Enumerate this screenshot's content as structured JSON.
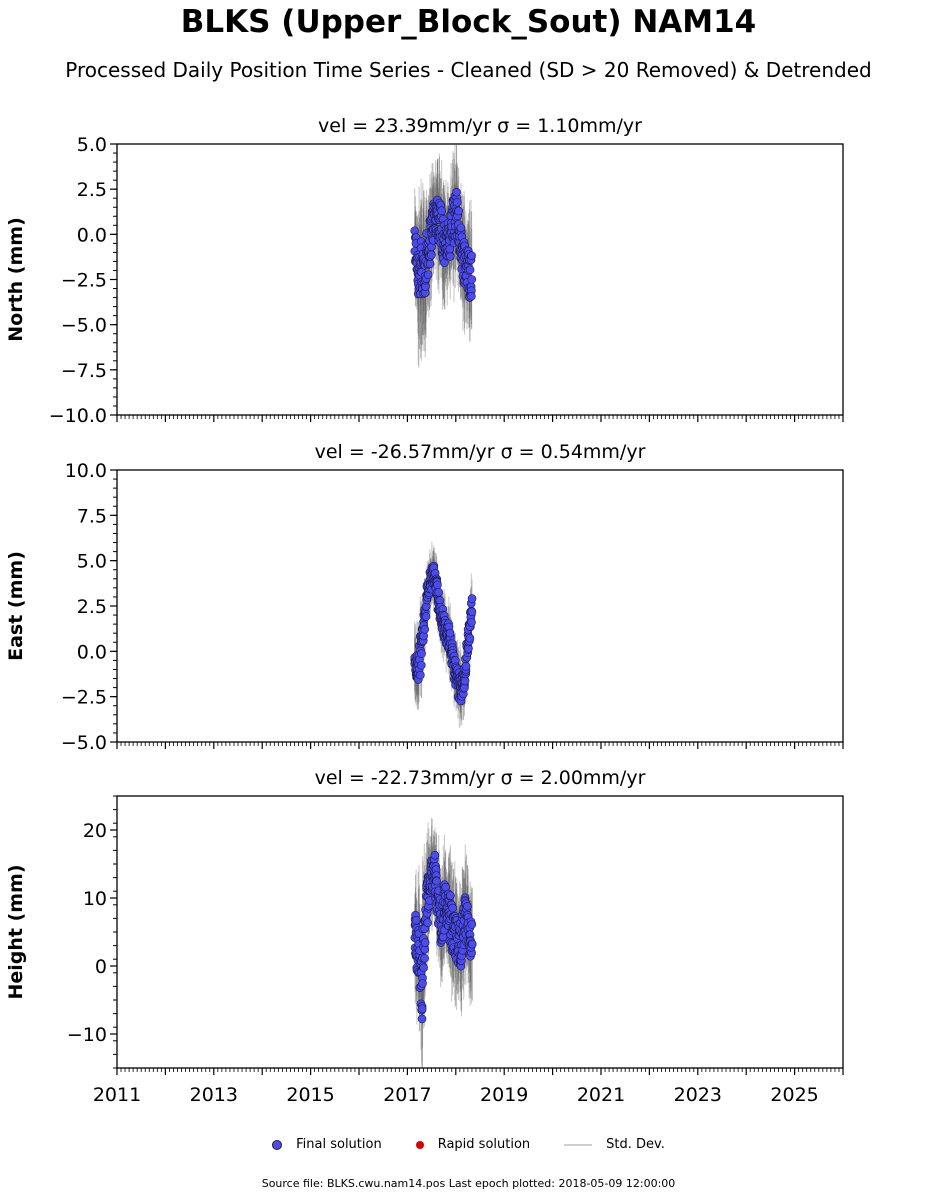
{
  "title": "BLKS (Upper_Block_Sout) NAM14",
  "subtitle": "Processed Daily Position Time Series - Cleaned (SD > 20 Removed) & Detrended",
  "chart_data": [
    {
      "type": "scatter",
      "title": "vel = 23.39mm/yr   σ = 1.10mm/yr",
      "ylabel": "North (mm)",
      "ylim": [
        -10,
        5
      ],
      "yticks": [
        5.0,
        2.5,
        0.0,
        -2.5,
        -5.0,
        -7.5,
        -10.0
      ],
      "ytick_labels": [
        "5.0",
        "2.5",
        "0.0",
        "−2.5",
        "−5.0",
        "−7.5",
        "−10.0"
      ],
      "xlim": [
        2011,
        2026
      ],
      "series": [
        {
          "name": "Final solution",
          "x": [
            2017.15,
            2017.22,
            2017.3,
            2017.38,
            2017.46,
            2017.54,
            2017.62,
            2017.7,
            2017.78,
            2017.86,
            2017.94,
            2018.02,
            2018.1,
            2018.18,
            2018.26,
            2018.34
          ],
          "y": [
            -0.5,
            -1.8,
            -2.5,
            -1.5,
            -0.5,
            0.8,
            1.2,
            0.5,
            -0.8,
            -0.3,
            0.8,
            1.0,
            -0.5,
            -1.5,
            -2.0,
            -2.3
          ],
          "sd": [
            2.0,
            3.5,
            3.0,
            2.5,
            2.2,
            2.0,
            2.3,
            2.5,
            2.0,
            2.2,
            2.5,
            2.0,
            2.2,
            2.4,
            2.5,
            2.2
          ]
        }
      ]
    },
    {
      "type": "scatter",
      "title": "vel = -26.57mm/yr   σ = 0.54mm/yr",
      "ylabel": "East (mm)",
      "ylim": [
        -5,
        10
      ],
      "yticks": [
        10.0,
        7.5,
        5.0,
        2.5,
        0.0,
        -2.5,
        -5.0
      ],
      "ytick_labels": [
        "10.0",
        "7.5",
        "5.0",
        "2.5",
        "0.0",
        "−2.5",
        "−5.0"
      ],
      "xlim": [
        2011,
        2026
      ],
      "series": [
        {
          "name": "Final solution",
          "x": [
            2017.15,
            2017.22,
            2017.3,
            2017.38,
            2017.46,
            2017.54,
            2017.62,
            2017.7,
            2017.78,
            2017.86,
            2017.94,
            2018.02,
            2018.1,
            2018.18,
            2018.26,
            2018.34
          ],
          "y": [
            -0.5,
            -1.2,
            0.5,
            2.5,
            3.8,
            4.2,
            3.2,
            2.0,
            1.2,
            0.8,
            -0.5,
            -1.5,
            -2.2,
            -1.5,
            0.8,
            2.5
          ],
          "sd": [
            1.5,
            1.8,
            1.5,
            1.2,
            1.2,
            1.1,
            1.2,
            1.2,
            1.2,
            1.3,
            1.3,
            1.4,
            1.3,
            1.2,
            1.2,
            1.2
          ]
        }
      ]
    },
    {
      "type": "scatter",
      "title": "vel = -22.73mm/yr   σ = 2.00mm/yr",
      "ylabel": "Height (mm)",
      "ylim": [
        -15,
        25
      ],
      "yticks": [
        20,
        10,
        0,
        -10
      ],
      "ytick_labels": [
        "20",
        "10",
        "0",
        "−10"
      ],
      "xlim": [
        2011,
        2026
      ],
      "series": [
        {
          "name": "Final solution",
          "x": [
            2017.15,
            2017.22,
            2017.3,
            2017.38,
            2017.46,
            2017.54,
            2017.62,
            2017.7,
            2017.78,
            2017.86,
            2017.94,
            2018.02,
            2018.1,
            2018.18,
            2018.26,
            2018.34
          ],
          "y": [
            5,
            2,
            -3,
            8,
            12,
            15,
            10,
            6,
            9,
            8,
            5,
            4,
            3,
            7,
            5,
            3
          ],
          "sd": [
            6,
            8,
            9,
            6,
            5,
            5,
            6,
            6,
            5,
            6,
            6,
            6,
            6,
            6,
            6,
            6
          ]
        }
      ]
    }
  ],
  "xaxis": {
    "ticks": [
      2011,
      2013,
      2015,
      2017,
      2019,
      2021,
      2023,
      2025
    ],
    "labels": [
      "2011",
      "2013",
      "2015",
      "2017",
      "2019",
      "2021",
      "2023",
      "2025"
    ]
  },
  "legend": {
    "final": "Final solution",
    "rapid": "Rapid solution",
    "std": "Std. Dev.",
    "final_color": "#4b4bf0",
    "rapid_color": "#e00000"
  },
  "footer": "Source file: BLKS.cwu.nam14.pos  Last epoch plotted: 2018-05-09 12:00:00"
}
